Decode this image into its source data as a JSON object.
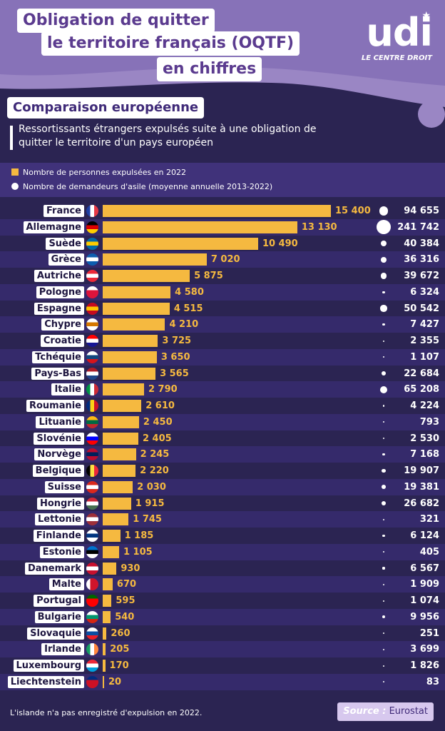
{
  "header": {
    "title_line1": "Obligation de quitter",
    "title_line2": "le territoire français (OQTF)",
    "title_line3": "en chiffres",
    "logo_text": "udi",
    "logo_subtitle": "LE CENTRE DROIT"
  },
  "section_title": "Comparaison européenne",
  "subtitle": "Ressortissants étrangers expulsés suite à une obligation de quitter le territoire d'un pays européen",
  "legend": {
    "bars": "Nombre de personnes expulsées en 2022",
    "dots": "Nombre de demandeurs d'asile (moyenne annuelle 2013-2022)"
  },
  "colors": {
    "bar": "#f5b940",
    "background": "#2b2452",
    "accent": "#5b3b8f"
  },
  "chart_data": {
    "type": "bar",
    "orientation": "horizontal",
    "categories": [
      "France",
      "Allemagne",
      "Suède",
      "Grèce",
      "Autriche",
      "Pologne",
      "Espagne",
      "Chypre",
      "Croatie",
      "Tchéquie",
      "Pays-Bas",
      "Italie",
      "Roumanie",
      "Lituanie",
      "Slovénie",
      "Norvège",
      "Belgique",
      "Suisse",
      "Hongrie",
      "Lettonie",
      "Finlande",
      "Estonie",
      "Danemark",
      "Malte",
      "Portugal",
      "Bulgarie",
      "Slovaquie",
      "Irlande",
      "Luxembourg",
      "Liechtenstein"
    ],
    "series": [
      {
        "name": "Nombre de personnes expulsées en 2022",
        "values": [
          15400,
          13130,
          10490,
          7020,
          5875,
          4580,
          4515,
          4210,
          3725,
          3650,
          3565,
          2790,
          2610,
          2450,
          2405,
          2245,
          2220,
          2030,
          1915,
          1745,
          1185,
          1105,
          930,
          670,
          595,
          540,
          260,
          205,
          170,
          20
        ],
        "labels": [
          "15 400",
          "13 130",
          "10 490",
          "7 020",
          "5 875",
          "4 580",
          "4 515",
          "4 210",
          "3 725",
          "3 650",
          "3 565",
          "2 790",
          "2 610",
          "2 450",
          "2 405",
          "2 245",
          "2 220",
          "2 030",
          "1 915",
          "1 745",
          "1 185",
          "1 105",
          "930",
          "670",
          "595",
          "540",
          "260",
          "205",
          "170",
          "20"
        ]
      },
      {
        "name": "Nombre de demandeurs d'asile (moyenne annuelle 2013-2022)",
        "values": [
          94655,
          241742,
          40384,
          36316,
          39672,
          6324,
          50542,
          7427,
          2355,
          1107,
          22684,
          65208,
          4224,
          793,
          2530,
          7168,
          19907,
          19381,
          26682,
          321,
          6124,
          405,
          6567,
          1909,
          1074,
          9956,
          251,
          3699,
          1826,
          83
        ],
        "labels": [
          "94 655",
          "241 742",
          "40 384",
          "36 316",
          "39 672",
          "6 324",
          "50 542",
          "7 427",
          "2 355",
          "1 107",
          "22 684",
          "65 208",
          "4 224",
          "793",
          "2 530",
          "7 168",
          "19 907",
          "19 381",
          "26 682",
          "321",
          "6 124",
          "405",
          "6 567",
          "1 909",
          "1 074",
          "9 956",
          "251",
          "3 699",
          "1 826",
          "83"
        ]
      }
    ]
  },
  "footnote": "L'islande n'a pas enregistré d'expulsion en 2022.",
  "source": {
    "label": "Source :",
    "value": "Eurostat"
  }
}
